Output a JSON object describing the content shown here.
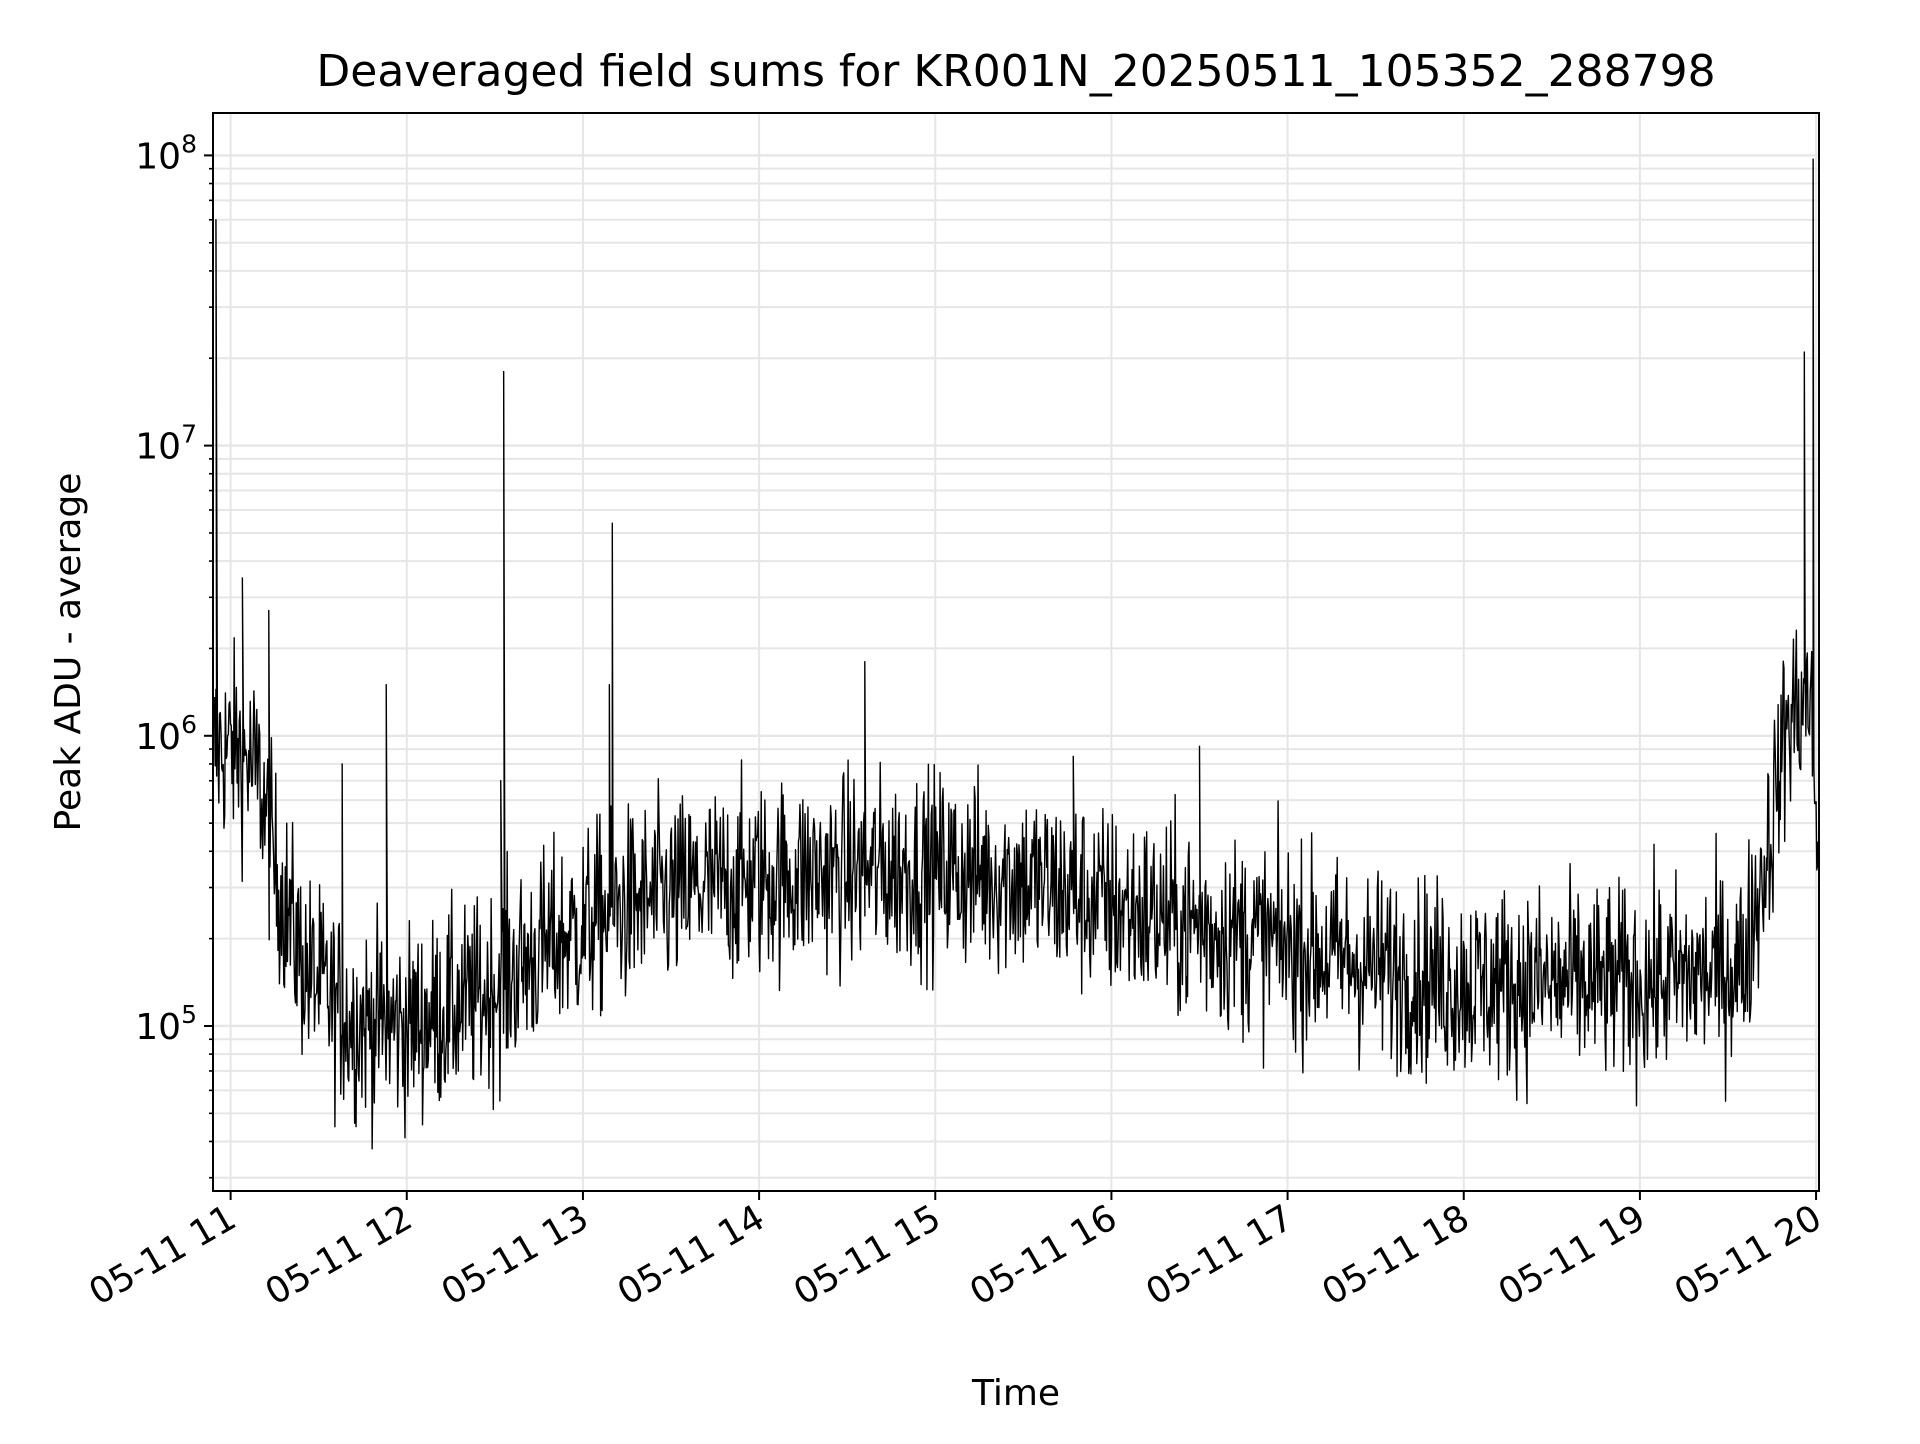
{
  "chart_data": {
    "type": "line",
    "title": "Deaveraged field sums for KR001N_20250511_105352_288798",
    "xlabel": "Time",
    "ylabel": "Peak ADU - average",
    "x_tick_labels": [
      "05-11 11",
      "05-11 12",
      "05-11 13",
      "05-11 14",
      "05-11 15",
      "05-11 16",
      "05-11 17",
      "05-11 18",
      "05-11 19",
      "05-11 20"
    ],
    "y_tick_labels": [
      {
        "base": "10",
        "exp": "5"
      },
      {
        "base": "10",
        "exp": "6"
      },
      {
        "base": "10",
        "exp": "7"
      },
      {
        "base": "10",
        "exp": "8"
      }
    ],
    "yscale": "log",
    "xlim": [
      "2025-05-11 10:54",
      "2025-05-11 20:01"
    ],
    "ylim": [
      27000,
      140000000
    ],
    "grid": true,
    "line_color": "#000000",
    "grid_color": "#e6e6e6",
    "series": [
      {
        "x_start": "2025-05-11 10:54",
        "x_end": "2025-05-11 20:01",
        "baseline": [
          [
            "2025-05-11 10:54",
            900000
          ],
          [
            "2025-05-11 11:03",
            900000
          ],
          [
            "2025-05-11 11:10",
            700000
          ],
          [
            "2025-05-11 11:15",
            350000
          ],
          [
            "2025-05-11 11:25",
            160000
          ],
          [
            "2025-05-11 11:40",
            105000
          ],
          [
            "2025-05-11 12:00",
            100000
          ],
          [
            "2025-05-11 12:25",
            125000
          ],
          [
            "2025-05-11 12:45",
            180000
          ],
          [
            "2025-05-11 13:10",
            250000
          ],
          [
            "2025-05-11 13:40",
            300000
          ],
          [
            "2025-05-11 14:00",
            320000
          ],
          [
            "2025-05-11 14:30",
            340000
          ],
          [
            "2025-05-11 15:00",
            350000
          ],
          [
            "2025-05-11 15:30",
            320000
          ],
          [
            "2025-05-11 16:00",
            260000
          ],
          [
            "2025-05-11 16:30",
            220000
          ],
          [
            "2025-05-11 17:00",
            190000
          ],
          [
            "2025-05-11 17:30",
            160000
          ],
          [
            "2025-05-11 18:00",
            140000
          ],
          [
            "2025-05-11 19:00",
            140000
          ],
          [
            "2025-05-11 19:35",
            160000
          ],
          [
            "2025-05-11 19:43",
            380000
          ],
          [
            "2025-05-11 19:50",
            1100000
          ],
          [
            "2025-05-11 19:58",
            1400000
          ],
          [
            "2025-05-11 20:01",
            350000
          ]
        ],
        "spikes": [
          [
            "2025-05-11 10:55",
            60000000
          ],
          [
            "2025-05-11 11:04",
            3500000
          ],
          [
            "2025-05-11 11:13",
            2700000
          ],
          [
            "2025-05-11 11:38",
            800000
          ],
          [
            "2025-05-11 11:53",
            1500000
          ],
          [
            "2025-05-11 12:32",
            700000
          ],
          [
            "2025-05-11 12:33",
            18000000
          ],
          [
            "2025-05-11 13:09",
            1500000
          ],
          [
            "2025-05-11 13:10",
            5400000
          ],
          [
            "2025-05-11 14:36",
            1800000
          ],
          [
            "2025-05-11 15:47",
            850000
          ],
          [
            "2025-05-11 16:30",
            920000
          ],
          [
            "2025-05-11 19:56",
            21000000
          ],
          [
            "2025-05-11 19:59",
            97000000
          ]
        ]
      }
    ]
  }
}
